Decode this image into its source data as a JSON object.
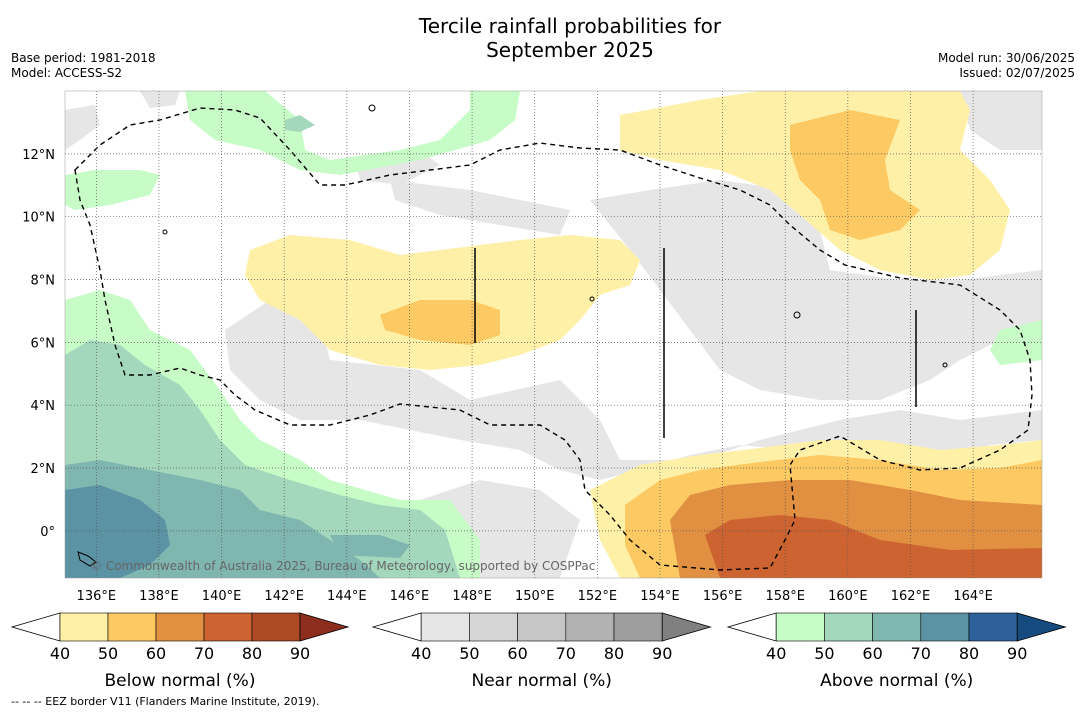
{
  "header": {
    "title_line1": "Tercile rainfall probabilities for",
    "title_line2": "September 2025",
    "base_period": "Base period: 1981-2018",
    "model": "Model: ACCESS-S2",
    "model_run": "Model run: 30/06/2025",
    "issued": "Issued: 02/07/2025"
  },
  "map": {
    "lon_range": [
      135,
      166.2
    ],
    "lat_range": [
      -1.5,
      14
    ],
    "lat_ticks": [
      {
        "value": 12,
        "label": "12°N"
      },
      {
        "value": 10,
        "label": "10°N"
      },
      {
        "value": 8,
        "label": "8°N"
      },
      {
        "value": 6,
        "label": "6°N"
      },
      {
        "value": 4,
        "label": "4°N"
      },
      {
        "value": 2,
        "label": "2°N"
      },
      {
        "value": 0,
        "label": "0°"
      }
    ],
    "lon_ticks": [
      {
        "value": 136,
        "label": "136°E"
      },
      {
        "value": 138,
        "label": "138°E"
      },
      {
        "value": 140,
        "label": "140°E"
      },
      {
        "value": 142,
        "label": "142°E"
      },
      {
        "value": 144,
        "label": "144°E"
      },
      {
        "value": 146,
        "label": "146°E"
      },
      {
        "value": 148,
        "label": "148°E"
      },
      {
        "value": 150,
        "label": "150°E"
      },
      {
        "value": 152,
        "label": "152°E"
      },
      {
        "value": 154,
        "label": "154°E"
      },
      {
        "value": 156,
        "label": "156°E"
      },
      {
        "value": 158,
        "label": "158°E"
      },
      {
        "value": 160,
        "label": "160°E"
      },
      {
        "value": 162,
        "label": "162°E"
      },
      {
        "value": 164,
        "label": "164°E"
      }
    ],
    "credit": "© Commonwealth of Australia 2025, Bureau of Meteorology, supported by COSPPac"
  },
  "legends": [
    {
      "name": "Below normal (%)",
      "ticks": [
        "40",
        "50",
        "60",
        "70",
        "80",
        "90"
      ],
      "colors": [
        "#fff0a8",
        "#fdc963",
        "#e19042",
        "#cc6331",
        "#ad4a26",
        "#8c2d1e"
      ]
    },
    {
      "name": "Near normal (%)",
      "ticks": [
        "40",
        "50",
        "60",
        "70",
        "80",
        "90"
      ],
      "colors": [
        "#e6e6e6",
        "#d6d6d6",
        "#c6c6c6",
        "#b2b2b2",
        "#9e9e9e",
        "#808080"
      ]
    },
    {
      "name": "Above normal (%)",
      "ticks": [
        "40",
        "50",
        "60",
        "70",
        "80",
        "90"
      ],
      "colors": [
        "#c7fcc7",
        "#a3d8bd",
        "#80b6b0",
        "#5b92a4",
        "#2e6199",
        "#164b80"
      ]
    }
  ],
  "footnote": "-- -- -- EEZ border V11 (Flanders Marine Institute, 2019)."
}
